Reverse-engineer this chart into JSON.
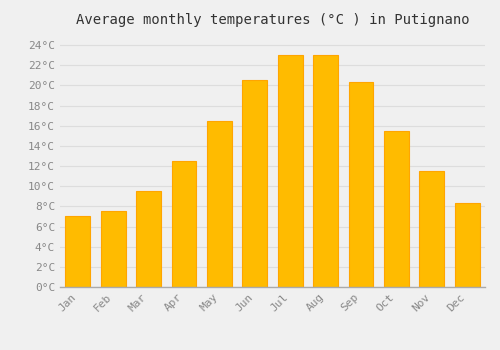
{
  "title": "Average monthly temperatures (°C ) in Putignano",
  "months": [
    "Jan",
    "Feb",
    "Mar",
    "Apr",
    "May",
    "Jun",
    "Jul",
    "Aug",
    "Sep",
    "Oct",
    "Nov",
    "Dec"
  ],
  "values": [
    7.0,
    7.5,
    9.5,
    12.5,
    16.5,
    20.5,
    23.0,
    23.0,
    20.3,
    15.5,
    11.5,
    8.3
  ],
  "bar_color": "#FFBB00",
  "bar_edge_color": "#FFA500",
  "background_color": "#F0F0F0",
  "grid_color": "#DDDDDD",
  "ylim": [
    0,
    25
  ],
  "ytick_step": 2,
  "title_fontsize": 10,
  "tick_fontsize": 8,
  "tick_color": "#888888",
  "font_family": "monospace"
}
